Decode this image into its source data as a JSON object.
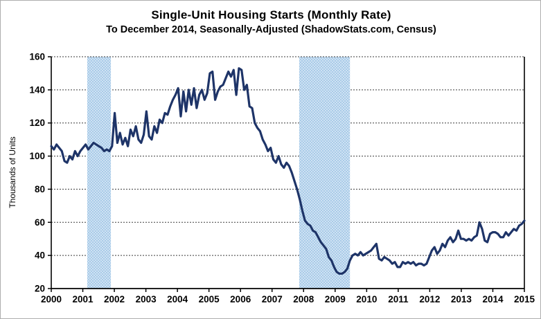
{
  "chart_data": {
    "type": "line",
    "title": "Single-Unit Housing Starts (Monthly Rate)",
    "subtitle": "To December 2014, Seasonally-Adjusted (ShadowStats.com, Census)",
    "ylabel": "Thousands of Units",
    "xlabel": "",
    "ylim": [
      20,
      160
    ],
    "xlim": [
      2000,
      2015
    ],
    "y_ticks": [
      20,
      40,
      60,
      80,
      100,
      120,
      140,
      160
    ],
    "x_ticks": [
      2000,
      2001,
      2002,
      2003,
      2004,
      2005,
      2006,
      2007,
      2008,
      2009,
      2010,
      2011,
      2012,
      2013,
      2014,
      2015
    ],
    "grid": "horizontal-dashed",
    "legend_position": "none",
    "line_color": "#1e3468",
    "band_color": "#a9cbe8",
    "recession_bands": [
      {
        "start": 2001.14,
        "end": 2001.89
      },
      {
        "start": 2007.86,
        "end": 2009.47
      }
    ],
    "start_year": 2000,
    "frequency": "monthly",
    "series": [
      {
        "name": "Single-Unit Housing Starts (Monthly Rate, Thousands of Units)",
        "values": [
          106,
          104,
          107,
          105,
          103,
          97,
          96,
          100,
          98,
          103,
          100,
          103,
          105,
          107,
          104,
          106,
          108,
          107,
          106,
          105,
          103,
          104,
          103,
          106,
          126,
          108,
          114,
          107,
          111,
          106,
          116,
          112,
          118,
          110,
          108,
          113,
          127,
          112,
          110,
          118,
          114,
          122,
          120,
          126,
          125,
          130,
          134,
          137,
          141,
          124,
          139,
          127,
          140,
          131,
          141,
          129,
          137,
          140,
          134,
          138,
          150,
          151,
          134,
          139,
          142,
          143,
          147,
          151,
          148,
          152,
          137,
          153,
          152,
          140,
          143,
          130,
          129,
          120,
          117,
          115,
          110,
          107,
          103,
          105,
          98,
          96,
          100,
          95,
          93,
          96,
          94,
          90,
          85,
          80,
          74,
          67,
          61,
          59,
          58,
          55,
          54,
          51,
          48,
          46,
          44,
          39,
          37,
          33,
          30,
          29,
          29,
          30,
          32,
          37,
          40,
          41,
          40,
          42,
          40,
          41,
          42,
          43,
          45,
          47,
          38,
          37,
          39,
          38,
          37,
          35,
          36,
          33,
          33,
          36,
          35,
          36,
          35,
          36,
          34,
          35,
          35,
          34,
          35,
          39,
          43,
          45,
          41,
          43,
          47,
          45,
          49,
          51,
          48,
          50,
          55,
          50,
          50,
          49,
          50,
          49,
          51,
          52,
          60,
          56,
          49,
          48,
          53,
          54,
          54,
          53,
          51,
          51,
          54,
          52,
          54,
          56,
          55,
          58,
          59,
          61
        ]
      }
    ]
  }
}
